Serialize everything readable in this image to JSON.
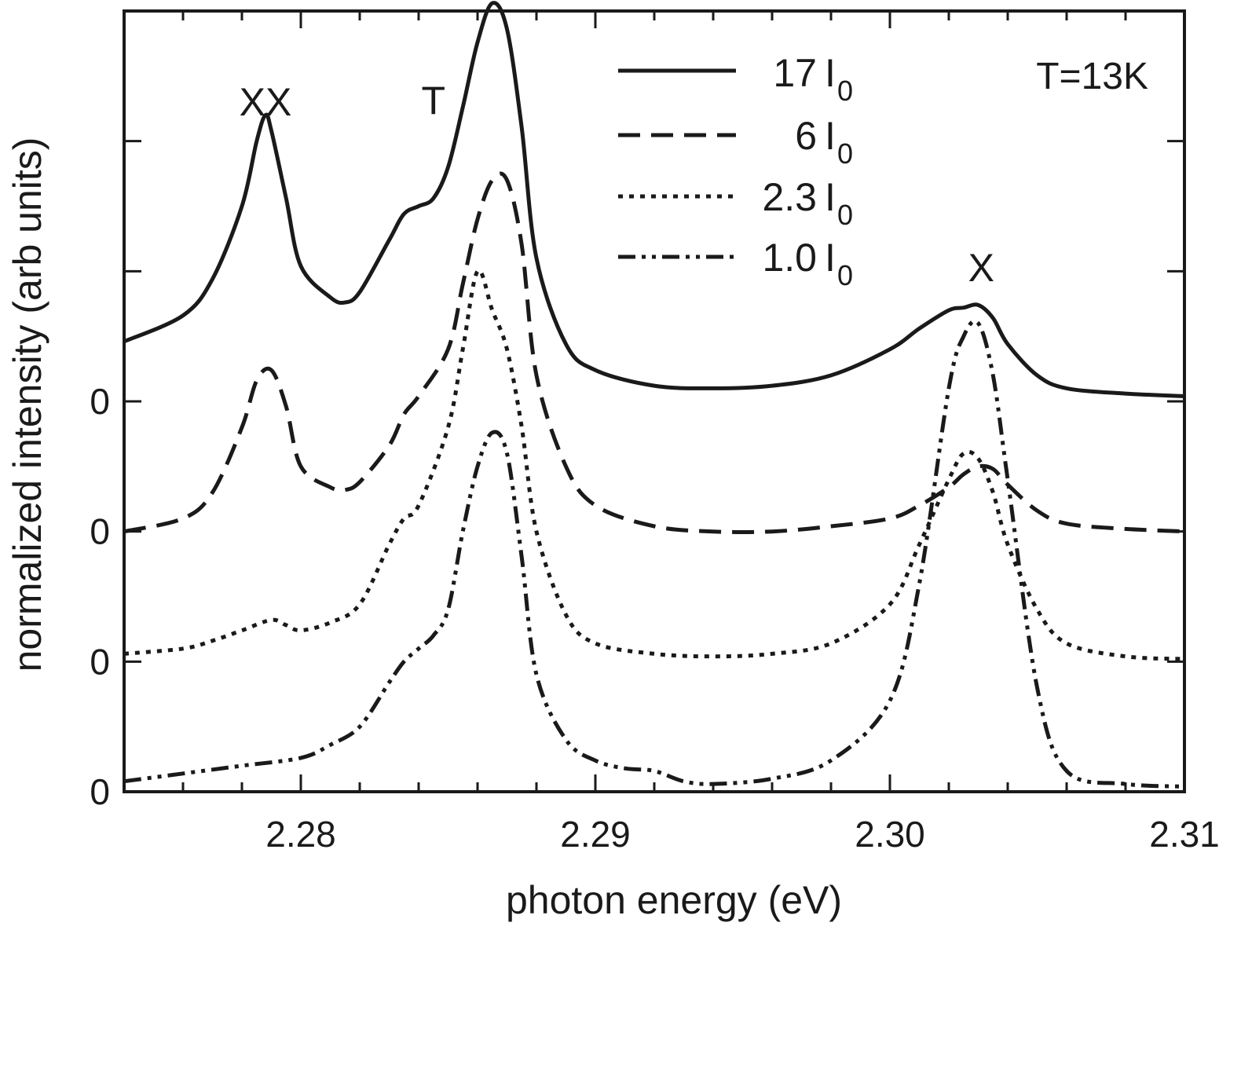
{
  "chart_data": {
    "type": "line",
    "title": "",
    "xlabel": "photon energy (eV)",
    "ylabel": "normalized intensity (arb units)",
    "xlim": [
      2.274,
      2.31
    ],
    "ylim": [
      0,
      3.0
    ],
    "x_ticks": [
      {
        "value": 2.28,
        "label": "2.28"
      },
      {
        "value": 2.29,
        "label": "2.29"
      },
      {
        "value": 2.3,
        "label": "2.30"
      },
      {
        "value": 2.31,
        "label": "2.31"
      }
    ],
    "zero_labels": [
      "0",
      "0",
      "0",
      "0"
    ],
    "annotations": [
      {
        "text": "XX",
        "x": 2.2788
      },
      {
        "text": "T",
        "x": 2.2845
      },
      {
        "text": "X",
        "x": 2.3031
      },
      {
        "text": "T=13K",
        "position": "top-right"
      }
    ],
    "series": [
      {
        "name": "17 I0",
        "coef": "17",
        "sub": "0",
        "style": "solid",
        "offset": 1.5,
        "x": [
          2.274,
          2.276,
          2.277,
          2.278,
          2.2785,
          2.2788,
          2.279,
          2.2795,
          2.28,
          2.281,
          2.2815,
          2.282,
          2.283,
          2.2835,
          2.284,
          2.2845,
          2.285,
          2.2855,
          2.286,
          2.2865,
          2.287,
          2.2875,
          2.288,
          2.289,
          2.29,
          2.292,
          2.294,
          2.296,
          2.298,
          2.3,
          2.301,
          2.302,
          2.3025,
          2.303,
          2.3035,
          2.304,
          2.305,
          2.306,
          2.308,
          2.31
        ],
        "y": [
          0.23,
          0.33,
          0.47,
          0.75,
          1.0,
          1.1,
          1.04,
          0.78,
          0.52,
          0.4,
          0.38,
          0.42,
          0.62,
          0.72,
          0.75,
          0.78,
          0.9,
          1.13,
          1.38,
          1.53,
          1.43,
          1.05,
          0.55,
          0.22,
          0.12,
          0.06,
          0.05,
          0.06,
          0.1,
          0.2,
          0.28,
          0.35,
          0.36,
          0.37,
          0.32,
          0.22,
          0.1,
          0.05,
          0.03,
          0.02
        ]
      },
      {
        "name": "6 I0",
        "coef": "6",
        "sub": "0",
        "style": "dashed",
        "offset": 1.0,
        "x": [
          2.274,
          2.276,
          2.277,
          2.278,
          2.2785,
          2.279,
          2.2795,
          2.28,
          2.281,
          2.2815,
          2.282,
          2.283,
          2.2835,
          2.284,
          2.285,
          2.2855,
          2.286,
          2.2865,
          2.287,
          2.2875,
          2.288,
          2.289,
          2.29,
          2.292,
          2.294,
          2.296,
          2.298,
          2.3,
          2.301,
          2.302,
          2.3025,
          2.303,
          2.3035,
          2.304,
          2.305,
          2.306,
          2.308,
          2.31
        ],
        "y": [
          0.0,
          0.05,
          0.15,
          0.4,
          0.58,
          0.62,
          0.48,
          0.25,
          0.17,
          0.16,
          0.19,
          0.33,
          0.45,
          0.52,
          0.7,
          0.95,
          1.2,
          1.35,
          1.35,
          1.1,
          0.6,
          0.25,
          0.1,
          0.02,
          0.0,
          0.0,
          0.02,
          0.05,
          0.1,
          0.17,
          0.22,
          0.25,
          0.24,
          0.18,
          0.08,
          0.03,
          0.01,
          0.0
        ]
      },
      {
        "name": "2.3 I0",
        "coef": "2.3",
        "sub": "0",
        "style": "dotted",
        "offset": 0.5,
        "x": [
          2.274,
          2.276,
          2.277,
          2.278,
          2.279,
          2.2795,
          2.28,
          2.281,
          2.282,
          2.283,
          2.2835,
          2.284,
          2.285,
          2.2855,
          2.286,
          2.2865,
          2.287,
          2.2875,
          2.288,
          2.289,
          2.29,
          2.292,
          2.294,
          2.296,
          2.298,
          2.3,
          2.301,
          2.302,
          2.3025,
          2.303,
          2.3035,
          2.304,
          2.305,
          2.306,
          2.308,
          2.31
        ],
        "y": [
          0.03,
          0.05,
          0.08,
          0.12,
          0.16,
          0.14,
          0.12,
          0.15,
          0.22,
          0.45,
          0.55,
          0.6,
          0.9,
          1.2,
          1.5,
          1.35,
          1.2,
          0.9,
          0.5,
          0.18,
          0.07,
          0.03,
          0.02,
          0.03,
          0.07,
          0.22,
          0.45,
          0.7,
          0.8,
          0.78,
          0.65,
          0.45,
          0.2,
          0.07,
          0.02,
          0.01
        ]
      },
      {
        "name": "1.0 I0",
        "coef": "1.0",
        "sub": "0",
        "style": "dashdot",
        "offset": 0.0,
        "x": [
          2.274,
          2.276,
          2.278,
          2.28,
          2.281,
          2.282,
          2.283,
          2.2835,
          2.284,
          2.2845,
          2.285,
          2.2855,
          2.286,
          2.2865,
          2.287,
          2.2875,
          2.288,
          2.289,
          2.29,
          2.291,
          2.292,
          2.293,
          2.294,
          2.296,
          2.298,
          2.3,
          2.301,
          2.302,
          2.3025,
          2.303,
          2.3035,
          2.304,
          2.305,
          2.306,
          2.308,
          2.31
        ],
        "y": [
          0.04,
          0.07,
          0.1,
          0.13,
          0.18,
          0.25,
          0.42,
          0.5,
          0.55,
          0.6,
          0.7,
          1.0,
          1.25,
          1.38,
          1.3,
          0.9,
          0.45,
          0.2,
          0.12,
          0.09,
          0.08,
          0.04,
          0.03,
          0.05,
          0.12,
          0.35,
          0.8,
          1.55,
          1.75,
          1.8,
          1.6,
          1.2,
          0.4,
          0.08,
          0.03,
          0.02
        ]
      }
    ]
  }
}
